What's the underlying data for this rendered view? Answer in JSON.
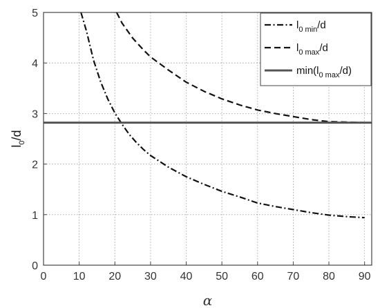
{
  "chart_data": {
    "type": "line",
    "xlabel": "α",
    "ylabel": {
      "main": "l",
      "sub": "0",
      "tail": "/d"
    },
    "xlim": [
      0,
      92
    ],
    "ylim": [
      0,
      5
    ],
    "xticks": [
      "0",
      "10",
      "20",
      "30",
      "40",
      "50",
      "60",
      "70",
      "80",
      "90"
    ],
    "yticks": [
      "0",
      "1",
      "2",
      "3",
      "4",
      "5"
    ],
    "grid": true,
    "legend_position": "top-right",
    "series": [
      {
        "name": "l0 min/d",
        "legend": {
          "pre": "l",
          "sub": "0 min",
          "post": "/d"
        },
        "style": "dashdot",
        "color": "#111111",
        "x": [
          10.5,
          12,
          14,
          16,
          18,
          20,
          22,
          24,
          26,
          28,
          30,
          35,
          40,
          45,
          50,
          55,
          60,
          65,
          70,
          75,
          80,
          85,
          90
        ],
        "y": [
          5.0,
          4.64,
          4.06,
          3.63,
          3.29,
          3.01,
          2.79,
          2.59,
          2.43,
          2.29,
          2.17,
          1.94,
          1.75,
          1.6,
          1.46,
          1.35,
          1.23,
          1.16,
          1.1,
          1.04,
          0.99,
          0.96,
          0.94
        ]
      },
      {
        "name": "l0 max/d",
        "legend": {
          "pre": "l",
          "sub": "0 max",
          "post": "/d"
        },
        "style": "dashed",
        "color": "#111111",
        "x": [
          20.5,
          22,
          25,
          28,
          30,
          35,
          40,
          45,
          50,
          55,
          60,
          65,
          70,
          75,
          80,
          85,
          90
        ],
        "y": [
          5.0,
          4.79,
          4.49,
          4.26,
          4.12,
          3.86,
          3.62,
          3.44,
          3.29,
          3.17,
          3.07,
          3.0,
          2.94,
          2.88,
          2.84,
          2.83,
          2.82
        ]
      },
      {
        "name": "min(l0 max/d)",
        "legend": {
          "pre": "min(l",
          "sub": "0 max",
          "post": "/d)"
        },
        "style": "solid",
        "color": "#555555",
        "x": [
          0,
          92
        ],
        "y": [
          2.82,
          2.82
        ]
      }
    ]
  }
}
